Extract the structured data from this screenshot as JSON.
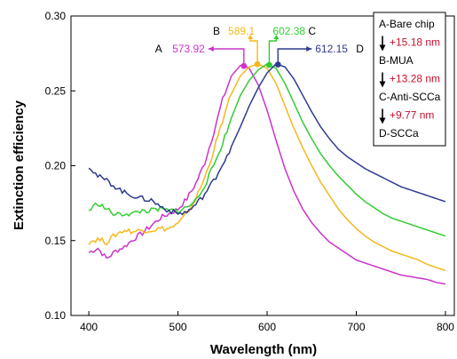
{
  "chart_data": {
    "type": "line",
    "title": "",
    "xlabel": "Wavelength (nm)",
    "ylabel": "Extinction efficiency",
    "xlim": [
      380,
      810
    ],
    "ylim": [
      0.1,
      0.3
    ],
    "xticks": [
      400,
      500,
      600,
      700,
      800
    ],
    "yticks": [
      0.1,
      0.15,
      0.2,
      0.25,
      0.3
    ],
    "xtick_labels": [
      "400",
      "500",
      "600",
      "700",
      "800"
    ],
    "ytick_labels": [
      "0.10",
      "0.15",
      "0.20",
      "0.25",
      "0.30"
    ],
    "legend_position": "top-right",
    "legend_items": [
      {
        "text": "A-Bare chip",
        "color": "#000000"
      },
      {
        "text": "+15.18 nm",
        "color": "#c8102e",
        "shift": true
      },
      {
        "text": "B-MUA",
        "color": "#000000"
      },
      {
        "text": "+13.28 nm",
        "color": "#c8102e",
        "shift": true
      },
      {
        "text": "C-Anti-SCCa",
        "color": "#000000"
      },
      {
        "text": "+9.77 nm",
        "color": "#c8102e",
        "shift": true
      },
      {
        "text": "D-SCCa",
        "color": "#000000"
      }
    ],
    "series": [
      {
        "name": "A",
        "color": "#cc33cc",
        "peak_x": 573.92,
        "peak_label": "573.92",
        "x": [
          400,
          410,
          420,
          430,
          440,
          450,
          460,
          470,
          480,
          490,
          500,
          510,
          520,
          530,
          540,
          550,
          560,
          570,
          575,
          580,
          590,
          600,
          610,
          620,
          630,
          640,
          650,
          660,
          670,
          680,
          690,
          700,
          710,
          720,
          730,
          740,
          750,
          760,
          770,
          780,
          790,
          800
        ],
        "y": [
          0.142,
          0.145,
          0.138,
          0.143,
          0.146,
          0.151,
          0.155,
          0.16,
          0.165,
          0.168,
          0.171,
          0.178,
          0.188,
          0.202,
          0.222,
          0.244,
          0.26,
          0.267,
          0.2665,
          0.265,
          0.254,
          0.237,
          0.217,
          0.198,
          0.183,
          0.171,
          0.162,
          0.155,
          0.149,
          0.145,
          0.141,
          0.137,
          0.135,
          0.133,
          0.131,
          0.129,
          0.127,
          0.126,
          0.125,
          0.124,
          0.122,
          0.121
        ]
      },
      {
        "name": "B",
        "color": "#f5b81c",
        "peak_x": 589.1,
        "peak_label": "589.1",
        "x": [
          400,
          410,
          420,
          430,
          440,
          450,
          460,
          470,
          480,
          490,
          500,
          510,
          520,
          530,
          540,
          550,
          560,
          570,
          580,
          590,
          600,
          610,
          620,
          630,
          640,
          650,
          660,
          670,
          680,
          690,
          700,
          710,
          720,
          730,
          740,
          750,
          760,
          770,
          780,
          790,
          800
        ],
        "y": [
          0.149,
          0.151,
          0.149,
          0.154,
          0.157,
          0.156,
          0.157,
          0.157,
          0.158,
          0.158,
          0.161,
          0.168,
          0.178,
          0.192,
          0.21,
          0.23,
          0.248,
          0.26,
          0.266,
          0.268,
          0.265,
          0.255,
          0.24,
          0.225,
          0.212,
          0.2,
          0.189,
          0.18,
          0.171,
          0.164,
          0.158,
          0.153,
          0.149,
          0.146,
          0.143,
          0.141,
          0.139,
          0.137,
          0.134,
          0.132,
          0.13
        ]
      },
      {
        "name": "C",
        "color": "#33cc33",
        "peak_x": 602.38,
        "peak_label": "602.38",
        "x": [
          400,
          410,
          420,
          430,
          440,
          450,
          460,
          470,
          480,
          490,
          500,
          510,
          520,
          530,
          540,
          550,
          560,
          570,
          580,
          590,
          600,
          610,
          620,
          630,
          640,
          650,
          660,
          670,
          680,
          690,
          700,
          710,
          720,
          730,
          740,
          750,
          760,
          770,
          780,
          790,
          800
        ],
        "y": [
          0.17,
          0.175,
          0.171,
          0.167,
          0.168,
          0.168,
          0.17,
          0.17,
          0.171,
          0.17,
          0.17,
          0.172,
          0.177,
          0.187,
          0.2,
          0.215,
          0.232,
          0.247,
          0.257,
          0.264,
          0.268,
          0.265,
          0.255,
          0.242,
          0.229,
          0.218,
          0.208,
          0.2,
          0.193,
          0.187,
          0.181,
          0.176,
          0.172,
          0.168,
          0.165,
          0.163,
          0.161,
          0.159,
          0.157,
          0.155,
          0.153
        ]
      },
      {
        "name": "D",
        "color": "#2e3b8f",
        "peak_x": 612.15,
        "peak_label": "612.15",
        "x": [
          400,
          410,
          420,
          430,
          440,
          450,
          460,
          470,
          480,
          490,
          500,
          510,
          520,
          530,
          540,
          550,
          560,
          570,
          580,
          590,
          600,
          610,
          620,
          630,
          640,
          650,
          660,
          670,
          680,
          690,
          700,
          710,
          720,
          730,
          740,
          750,
          760,
          770,
          780,
          790,
          800
        ],
        "y": [
          0.2,
          0.193,
          0.19,
          0.186,
          0.182,
          0.18,
          0.178,
          0.177,
          0.173,
          0.17,
          0.168,
          0.169,
          0.174,
          0.181,
          0.19,
          0.201,
          0.213,
          0.226,
          0.24,
          0.252,
          0.262,
          0.268,
          0.266,
          0.258,
          0.247,
          0.236,
          0.226,
          0.218,
          0.211,
          0.206,
          0.202,
          0.198,
          0.195,
          0.192,
          0.189,
          0.186,
          0.184,
          0.182,
          0.18,
          0.178,
          0.176
        ]
      }
    ]
  }
}
